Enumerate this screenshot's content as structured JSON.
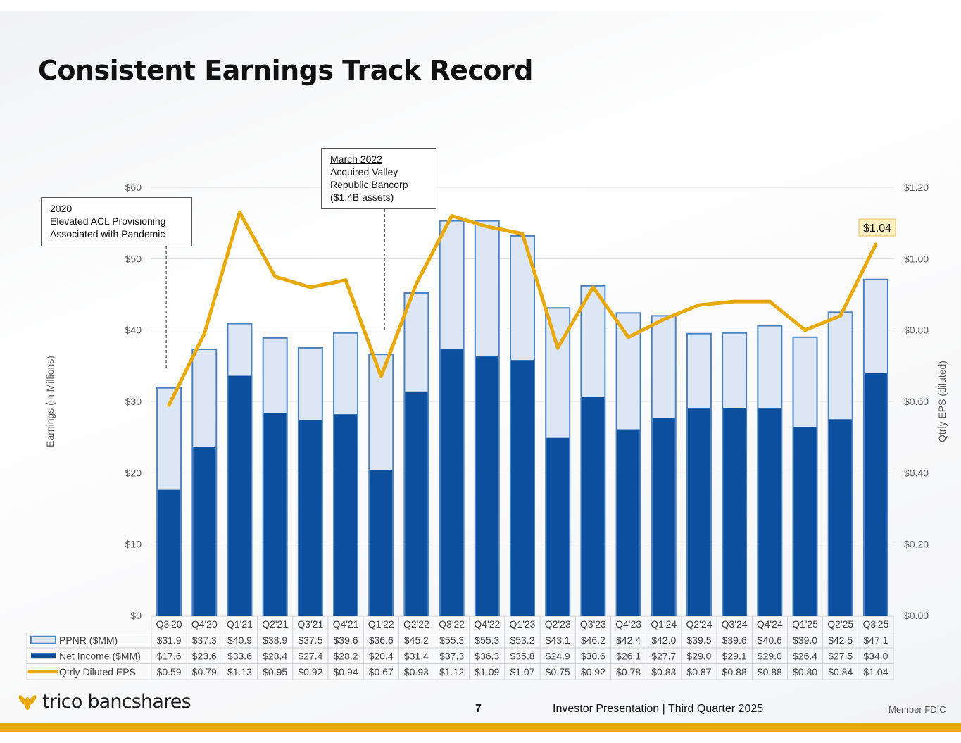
{
  "page": {
    "title": "Consistent Earnings Track Record",
    "page_number": "7",
    "footer_text": "Investor Presentation  |  Third Quarter 2025",
    "member": "Member FDIC",
    "logo_text": "trico bancshares",
    "logo_icon": "wheat-sheaf-icon"
  },
  "annotations": [
    {
      "heading": "2020",
      "lines": [
        "Elevated ACL Provisioning",
        "Associated with Pandemic"
      ],
      "category": "Q3'20"
    },
    {
      "heading": "March 2022",
      "lines": [
        "Acquired Valley",
        "Republic Bancorp",
        "($1.4B assets)"
      ],
      "category": "Q1'22"
    }
  ],
  "chart_data": {
    "type": "bar",
    "stacked_overlay": true,
    "categories": [
      "Q3'20",
      "Q4'20",
      "Q1'21",
      "Q2'21",
      "Q3'21",
      "Q4'21",
      "Q1'22",
      "Q2'22",
      "Q3'22",
      "Q4'22",
      "Q1'23",
      "Q2'23",
      "Q3'23",
      "Q4'23",
      "Q1'24",
      "Q2'24",
      "Q3'24",
      "Q4'24",
      "Q1'25",
      "Q2'25",
      "Q3'25"
    ],
    "series": [
      {
        "name": "PPNR ($MM)",
        "axis": "left",
        "kind": "bar",
        "color": "#dce6f4",
        "edge_color": "#4d82c1",
        "values": [
          31.9,
          37.3,
          40.9,
          38.9,
          37.5,
          39.6,
          36.6,
          45.2,
          55.3,
          55.3,
          53.2,
          43.1,
          46.2,
          42.4,
          42.0,
          39.5,
          39.6,
          40.6,
          39.0,
          42.5,
          47.1
        ],
        "labels": [
          "$31.9",
          "$37.3",
          "$40.9",
          "$38.9",
          "$37.5",
          "$39.6",
          "$36.6",
          "$45.2",
          "$55.3",
          "$55.3",
          "$53.2",
          "$43.1",
          "$46.2",
          "$42.4",
          "$42.0",
          "$39.5",
          "$39.6",
          "$40.6",
          "$39.0",
          "$42.5",
          "$47.1"
        ]
      },
      {
        "name": "Net Income ($MM)",
        "axis": "left",
        "kind": "bar",
        "color": "#0c4f9e",
        "values": [
          17.6,
          23.6,
          33.6,
          28.4,
          27.4,
          28.2,
          20.4,
          31.4,
          37.3,
          36.3,
          35.8,
          24.9,
          30.6,
          26.1,
          27.7,
          29.0,
          29.1,
          29.0,
          26.4,
          27.5,
          34.0
        ],
        "labels": [
          "$17.6",
          "$23.6",
          "$33.6",
          "$28.4",
          "$27.4",
          "$28.2",
          "$20.4",
          "$31.4",
          "$37.3",
          "$36.3",
          "$35.8",
          "$24.9",
          "$30.6",
          "$26.1",
          "$27.7",
          "$29.0",
          "$29.1",
          "$29.0",
          "$26.4",
          "$27.5",
          "$34.0"
        ]
      },
      {
        "name": "Qtrly Diluted EPS",
        "axis": "right",
        "kind": "line",
        "color": "#e8a90d",
        "values": [
          0.59,
          0.79,
          1.13,
          0.95,
          0.92,
          0.94,
          0.67,
          0.93,
          1.12,
          1.09,
          1.07,
          0.75,
          0.92,
          0.78,
          0.83,
          0.87,
          0.88,
          0.88,
          0.8,
          0.84,
          1.04
        ],
        "labels": [
          "$0.59",
          "$0.79",
          "$1.13",
          "$0.95",
          "$0.92",
          "$0.94",
          "$0.67",
          "$0.93",
          "$1.12",
          "$1.09",
          "$1.07",
          "$0.75",
          "$0.92",
          "$0.78",
          "$0.83",
          "$0.87",
          "$0.88",
          "$0.88",
          "$0.80",
          "$0.84",
          "$1.04"
        ]
      }
    ],
    "ylabel": "Earnings (in Millions)",
    "y2label": "Qtrly EPS (diluted)",
    "ylim": [
      0,
      60
    ],
    "y2lim": [
      0,
      1.2
    ],
    "yticks": [
      0,
      10,
      20,
      30,
      40,
      50,
      60
    ],
    "ytick_labels": [
      "$0",
      "$10",
      "$20",
      "$30",
      "$40",
      "$50",
      "$60"
    ],
    "y2ticks": [
      0,
      0.2,
      0.4,
      0.6,
      0.8,
      1.0,
      1.2
    ],
    "y2tick_labels": [
      "$0.00",
      "$0.20",
      "$0.40",
      "$0.60",
      "$0.80",
      "$1.00",
      "$1.20"
    ],
    "highlight_label": "$1.04",
    "grid": true,
    "legend": "data-table-below"
  }
}
